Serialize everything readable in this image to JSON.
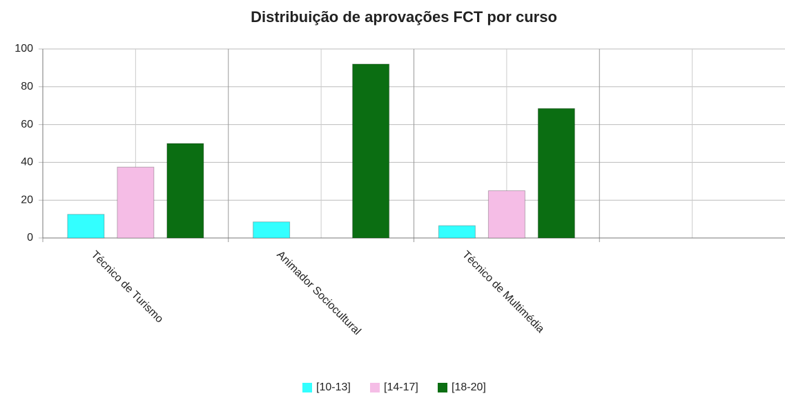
{
  "chart_data": {
    "type": "bar",
    "title": "Distribuição de aprovações FCT por curso",
    "categories": [
      "Técnico de Turismo",
      "Animador Sociocultural",
      "Técnico de Multimédia",
      null
    ],
    "series": [
      {
        "name": "[10-13]",
        "color": "#33ffff",
        "values": [
          12.5,
          8.5,
          6.5,
          null
        ]
      },
      {
        "name": "[14-17]",
        "color": "#f5bde6",
        "values": [
          37.5,
          null,
          25,
          null
        ]
      },
      {
        "name": "[18-20]",
        "color": "#0b6e12",
        "values": [
          50,
          92,
          68.5,
          null
        ]
      }
    ],
    "ylim": [
      0,
      100
    ],
    "yticks": [
      0,
      20,
      40,
      60,
      80,
      100
    ],
    "grid": true,
    "legend": "bottom"
  }
}
